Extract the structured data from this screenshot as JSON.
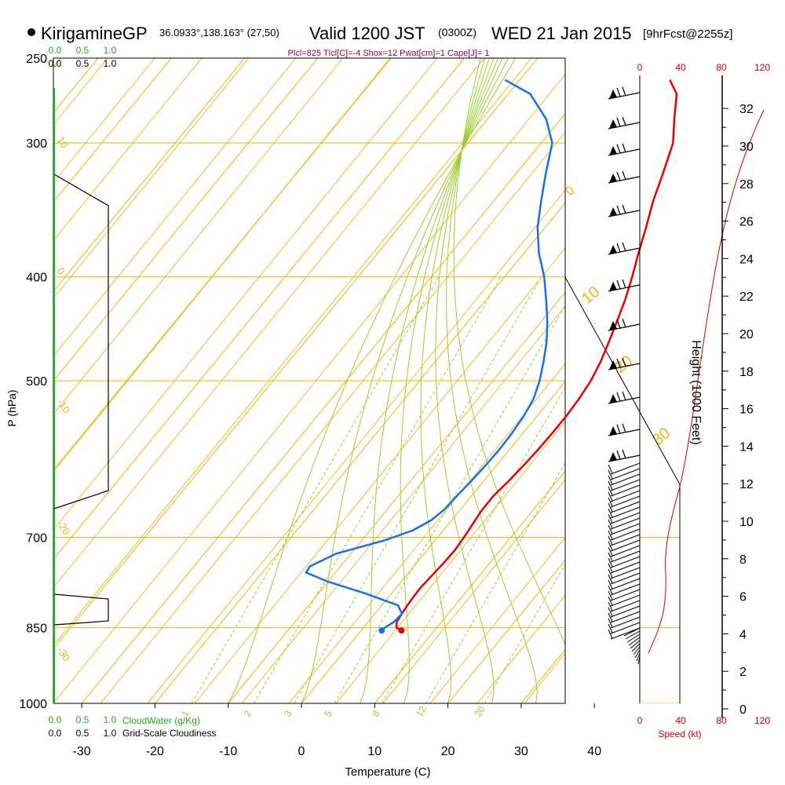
{
  "header": {
    "station": "KirigamineGP",
    "coords": "36.0933°,138.163° (27,50)",
    "valid": "Valid 1200 JST",
    "zulu": "(0300Z)",
    "date": "WED 21 Jan 2015",
    "forecast": "[9hrFcst@2255z]",
    "indices": "Plcl=825 Tlcl[C]=-4 Shox=12 Pwat[cm]=1 Cape[J]= 1"
  },
  "labels": {
    "pressure_axis": "P (hPa)",
    "temperature_axis": "Temperature (C)",
    "height_axis": "Height (1000 Feet)",
    "speed_axis": "Speed (kt)",
    "cloud_water": "CloudWater (g/Kg)",
    "cloudiness": "Grid-Scale Cloudiness"
  },
  "colors": {
    "isotherm": "#f0b400",
    "dry_adiabat": "#e8b000",
    "moist_adiabat": "#9acd32",
    "mixing_ratio": "#9acd32",
    "temperature": "#e60000",
    "dewpoint": "#1a6fe8",
    "cloud_water": "#22aa22",
    "speed": "#cc0000",
    "indices": "#990044"
  },
  "chart_data": {
    "type": "line",
    "title": "KirigamineGP 36.0933°,138.163° (27,50) Valid 1200 JST (0300Z) WED 21 Jan 2015 [9hrFcst@2255z]",
    "xlabel": "Temperature (C)",
    "ylabel": "P (hPa)",
    "x_ticks": [
      "-30",
      "-20",
      "-10",
      "0",
      "10",
      "20",
      "30",
      "40"
    ],
    "pressure_levels": [
      250,
      300,
      400,
      500,
      700,
      850,
      1000
    ],
    "pressure_labels": [
      "250",
      "300",
      "400",
      "500",
      "700",
      "850",
      "1000"
    ],
    "height_ticks": [
      "0",
      "2",
      "4",
      "6",
      "8",
      "10",
      "12",
      "14",
      "16",
      "18",
      "20",
      "22",
      "24",
      "26",
      "28",
      "30",
      "32"
    ],
    "cloud_scale_top": [
      "0.0",
      "0.5",
      "1.0"
    ],
    "cloud_scale_bottom": [
      "0.0",
      "0.5",
      "1.0"
    ],
    "speed_ticks": [
      "0",
      "40",
      "80",
      "120"
    ],
    "isotherm_labels": [
      "10",
      "0",
      "-10",
      "-20",
      "-30",
      "0",
      "10",
      "20",
      "30"
    ],
    "mixing_ratio_labels": [
      "1",
      "2",
      "3",
      "5",
      "8",
      "12",
      "20"
    ],
    "series": [
      {
        "name": "Temperature",
        "points": [
          [
            5.5,
            855
          ],
          [
            4.5,
            850
          ],
          [
            3.9,
            840
          ],
          [
            3.6,
            820
          ],
          [
            3.4,
            800
          ],
          [
            3.3,
            780
          ],
          [
            3.5,
            760
          ],
          [
            3.7,
            740
          ],
          [
            3.8,
            720
          ],
          [
            3.6,
            700
          ],
          [
            3.3,
            680
          ],
          [
            3.0,
            660
          ],
          [
            3.0,
            640
          ],
          [
            3.4,
            620
          ],
          [
            3.7,
            600
          ],
          [
            3.9,
            580
          ],
          [
            4.0,
            560
          ],
          [
            4.0,
            540
          ],
          [
            3.8,
            520
          ],
          [
            3.4,
            500
          ],
          [
            2.6,
            480
          ],
          [
            1.5,
            460
          ],
          [
            0.3,
            440
          ],
          [
            -1.0,
            420
          ],
          [
            -2.6,
            400
          ],
          [
            -4.4,
            380
          ],
          [
            -6.2,
            360
          ],
          [
            -8.2,
            340
          ],
          [
            -10.0,
            320
          ],
          [
            -12.0,
            300
          ],
          [
            -14.5,
            285
          ],
          [
            -17.0,
            270
          ],
          [
            -19.5,
            262
          ]
        ]
      },
      {
        "name": "Dewpoint",
        "points": [
          [
            2.8,
            855
          ],
          [
            2.9,
            850
          ],
          [
            3.5,
            840
          ],
          [
            3.7,
            825
          ],
          [
            2.2,
            810
          ],
          [
            -3.5,
            790
          ],
          [
            -10,
            770
          ],
          [
            -14,
            755
          ],
          [
            -14.2,
            745
          ],
          [
            -12,
            725
          ],
          [
            -7,
            705
          ],
          [
            -4.2,
            690
          ],
          [
            -2.8,
            675
          ],
          [
            -2.2,
            660
          ],
          [
            -2.0,
            640
          ],
          [
            -1.7,
            620
          ],
          [
            -1.5,
            600
          ],
          [
            -1.4,
            580
          ],
          [
            -1.5,
            560
          ],
          [
            -1.8,
            540
          ],
          [
            -2.4,
            520
          ],
          [
            -3.6,
            500
          ],
          [
            -5.2,
            480
          ],
          [
            -7.0,
            460
          ],
          [
            -9.2,
            440
          ],
          [
            -11.8,
            420
          ],
          [
            -14.6,
            400
          ],
          [
            -18.0,
            380
          ],
          [
            -21.0,
            360
          ],
          [
            -23.5,
            340
          ],
          [
            -26.0,
            320
          ],
          [
            -28.5,
            300
          ],
          [
            -32.0,
            285
          ],
          [
            -37.0,
            270
          ],
          [
            -42.0,
            262
          ]
        ]
      }
    ],
    "markers": [
      {
        "name": "surface temperature",
        "x": 5.5,
        "p": 855
      },
      {
        "name": "surface dewpoint",
        "x": 2.8,
        "p": 855
      }
    ]
  }
}
